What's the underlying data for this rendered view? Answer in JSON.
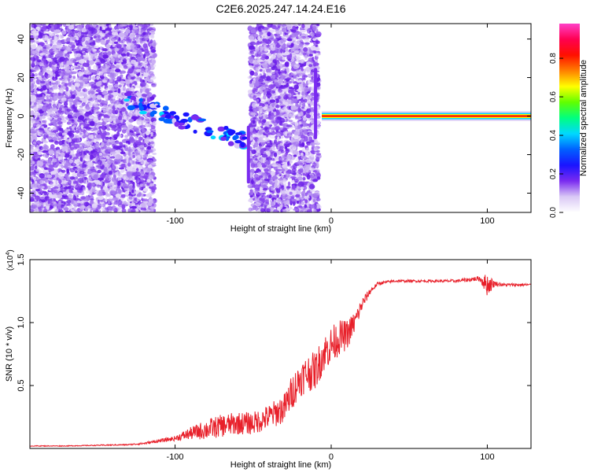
{
  "title": "C2E6.2025.247.14.24.E16",
  "chart_data": [
    {
      "type": "heatmap",
      "xlabel": "Height of straight line (km)",
      "ylabel": "Frequency (Hz)",
      "xlim": [
        -193,
        128
      ],
      "ylim": [
        -50,
        48
      ],
      "x_ticks": [
        -100,
        0,
        100
      ],
      "y_ticks": [
        -40,
        -20,
        0,
        20,
        40
      ],
      "colorbar": {
        "label": "Normalized spectral amplitude",
        "range": [
          0,
          0.98
        ],
        "ticks": [
          "0.0",
          "0.2",
          "0.4",
          "0.6",
          "0.8"
        ],
        "tick_values": [
          0.0,
          0.2,
          0.4,
          0.6,
          0.8
        ],
        "colors": [
          "#ffffff",
          "#d9c8f5",
          "#7a2bf0",
          "#1a14ff",
          "#0060ff",
          "#00d8ff",
          "#00ff80",
          "#60ff00",
          "#ffff00",
          "#ff8000",
          "#ff1000",
          "#ff0050",
          "#ff40c8"
        ]
      },
      "features": {
        "noise_regions": [
          [
            -193,
            -113
          ],
          [
            -52,
            -8
          ]
        ],
        "descending_track": {
          "x": [
            -132,
            -55
          ],
          "y": [
            8,
            -13
          ]
        },
        "vertical_streak_1": {
          "x": -53,
          "y": [
            -35,
            -5
          ]
        },
        "vertical_streak_2": {
          "x": -10,
          "y": [
            -12,
            25
          ]
        },
        "carrier_line": {
          "x": [
            -6,
            128
          ],
          "y": 0,
          "value": 0.98
        }
      }
    },
    {
      "type": "line",
      "xlabel": "Height of straight line (km)",
      "ylabel": "SNR (10 * v/v)",
      "scale_label": "(x10",
      "scale_exponent": "4",
      "xlim": [
        -193,
        128
      ],
      "ylim": [
        0,
        1.5
      ],
      "x_ticks": [
        -100,
        0,
        100
      ],
      "y_ticks": [
        0.5,
        1.0,
        1.5
      ],
      "y_tick_labels": [
        "0.5",
        "1.0",
        "1.5"
      ],
      "color": "#e8202a",
      "x": [
        -193,
        -170,
        -150,
        -130,
        -120,
        -110,
        -100,
        -90,
        -80,
        -70,
        -60,
        -50,
        -40,
        -30,
        -25,
        -20,
        -15,
        -10,
        -5,
        0,
        5,
        10,
        15,
        20,
        25,
        30,
        40,
        60,
        80,
        95,
        100,
        105,
        110,
        128
      ],
      "values": [
        0.02,
        0.02,
        0.025,
        0.03,
        0.04,
        0.06,
        0.08,
        0.12,
        0.15,
        0.18,
        0.2,
        0.2,
        0.25,
        0.32,
        0.45,
        0.55,
        0.6,
        0.62,
        0.75,
        0.82,
        0.88,
        0.9,
        1.0,
        1.15,
        1.25,
        1.31,
        1.33,
        1.33,
        1.33,
        1.35,
        1.3,
        1.31,
        1.3,
        1.3
      ],
      "noise_amplitude": [
        0.003,
        0.003,
        0.004,
        0.005,
        0.008,
        0.012,
        0.02,
        0.05,
        0.08,
        0.09,
        0.09,
        0.09,
        0.1,
        0.12,
        0.14,
        0.14,
        0.15,
        0.15,
        0.15,
        0.15,
        0.14,
        0.12,
        0.09,
        0.05,
        0.025,
        0.012,
        0.01,
        0.01,
        0.012,
        0.02,
        0.09,
        0.02,
        0.012,
        0.01
      ]
    }
  ]
}
